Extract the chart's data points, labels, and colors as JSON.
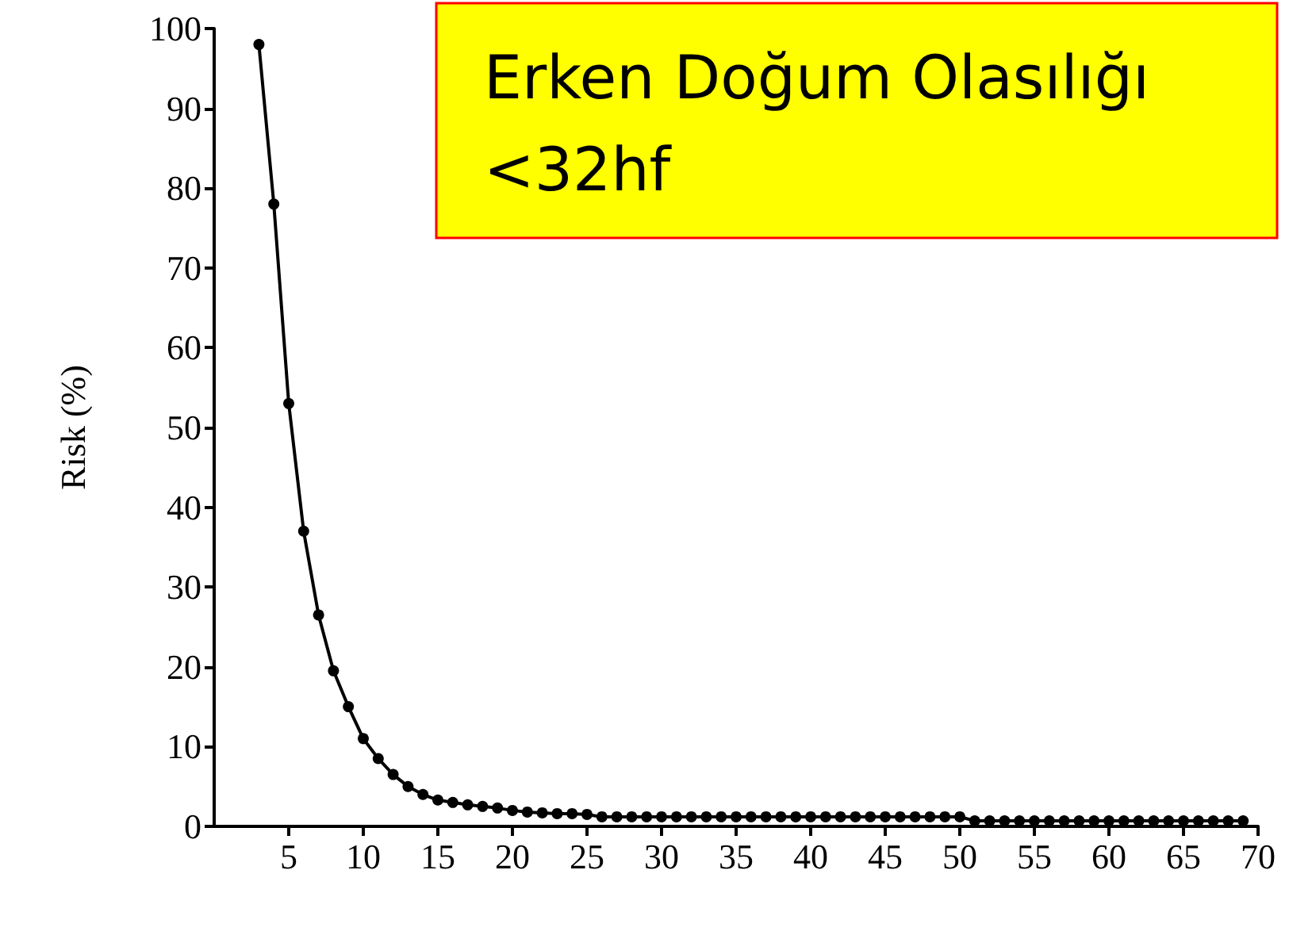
{
  "chart_data": {
    "type": "line",
    "title": "Erken Doğum Olasılığı\n<32hf",
    "ylabel": "Risk (%)",
    "x": [
      3,
      4,
      5,
      6,
      7,
      8,
      9,
      10,
      11,
      12,
      13,
      14,
      15,
      16,
      17,
      18,
      19,
      20,
      21,
      22,
      23,
      24,
      25,
      26,
      27,
      28,
      29,
      30,
      31,
      32,
      33,
      34,
      35,
      36,
      37,
      38,
      39,
      40,
      41,
      42,
      43,
      44,
      45,
      46,
      47,
      48,
      49,
      50,
      51,
      52,
      53,
      54,
      55,
      56,
      57,
      58,
      59,
      60,
      61,
      62,
      63,
      64,
      65,
      66,
      67,
      68,
      69
    ],
    "series": [
      {
        "color": "#000000",
        "values": [
          98,
          78,
          53,
          37,
          26.5,
          19.5,
          15,
          11,
          8.5,
          6.5,
          5,
          4,
          3.3,
          3,
          2.7,
          2.5,
          2.3,
          2,
          1.8,
          1.7,
          1.6,
          1.6,
          1.5,
          1.2,
          1.2,
          1.2,
          1.2,
          1.2,
          1.2,
          1.2,
          1.2,
          1.2,
          1.2,
          1.2,
          1.2,
          1.2,
          1.2,
          1.2,
          1.2,
          1.2,
          1.2,
          1.2,
          1.2,
          1.2,
          1.2,
          1.2,
          1.2,
          1.2,
          0.7,
          0.7,
          0.7,
          0.7,
          0.7,
          0.7,
          0.7,
          0.7,
          0.7,
          0.7,
          0.7,
          0.7,
          0.7,
          0.7,
          0.7,
          0.7,
          0.7,
          0.7,
          0.7
        ]
      }
    ],
    "xlim": [
      0,
      70
    ],
    "xticks": [
      5,
      10,
      15,
      20,
      25,
      30,
      35,
      40,
      45,
      50,
      55,
      60,
      65,
      70
    ],
    "ylim": [
      0,
      100
    ],
    "yticks": [
      0,
      10,
      20,
      30,
      40,
      50,
      60,
      70,
      80,
      90,
      100
    ],
    "marker": "circle",
    "line_style": "solid",
    "grid": false
  }
}
